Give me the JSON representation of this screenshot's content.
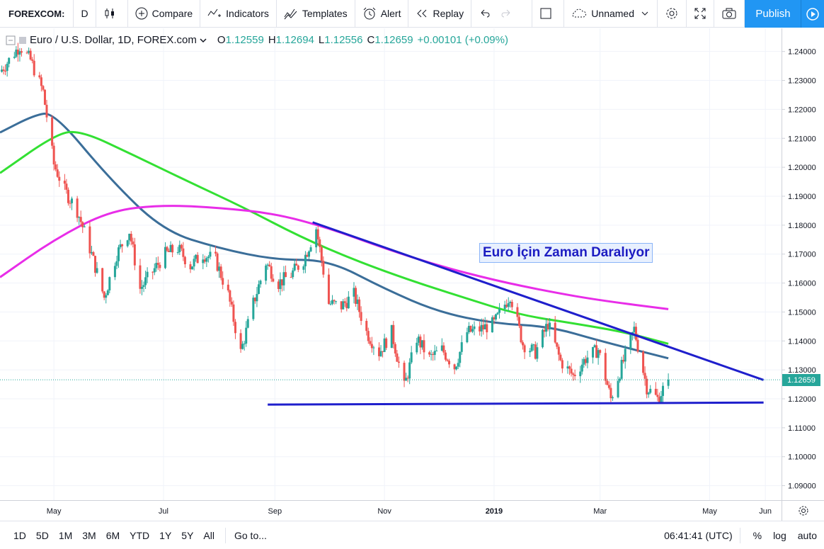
{
  "toolbar": {
    "symbol": "FOREXCOM:",
    "interval": "D",
    "compare": "Compare",
    "indicators": "Indicators",
    "templates": "Templates",
    "alert": "Alert",
    "replay": "Replay",
    "layout_name": "Unnamed",
    "publish": "Publish"
  },
  "legend": {
    "title": "Euro / U.S. Dollar, 1D, FOREX.com",
    "o_label": "O",
    "o_value": "1.12559",
    "h_label": "H",
    "h_value": "1.12694",
    "l_label": "L",
    "l_value": "1.12556",
    "c_label": "C",
    "c_value": "1.12659",
    "change": "+0.00101 (+0.09%)"
  },
  "annotation": "Euro İçin Zaman Daralıyor",
  "last_price": "1.12659",
  "bottombar": {
    "ranges": [
      "1D",
      "5D",
      "1M",
      "3M",
      "6M",
      "YTD",
      "1Y",
      "5Y",
      "All"
    ],
    "goto": "Go to...",
    "time": "06:41:41 (UTC)",
    "percent": "%",
    "log": "log",
    "auto": "auto"
  },
  "colors": {
    "up": "#26a69a",
    "down": "#ef5350",
    "ma_short": "#3b6e99",
    "ma_medium": "#33e033",
    "ma_long": "#e82de8",
    "trendline": "#1f1fcc",
    "accent": "#2196f3"
  },
  "chart_data": {
    "type": "candlestick",
    "symbol": "EURUSD",
    "interval": "1D",
    "ylim": [
      1.085,
      1.248
    ],
    "y_ticks": [
      "1.24000",
      "1.23000",
      "1.22000",
      "1.21000",
      "1.20000",
      "1.19000",
      "1.18000",
      "1.17000",
      "1.16000",
      "1.15000",
      "1.14000",
      "1.13000",
      "1.12000",
      "1.11000",
      "1.10000",
      "1.09000"
    ],
    "x_range": [
      "2018-04-01",
      "2019-06-10"
    ],
    "x_ticks": [
      {
        "date": "2018-05-01",
        "label": "May"
      },
      {
        "date": "2018-07-01",
        "label": "Jul"
      },
      {
        "date": "2018-09-01",
        "label": "Sep"
      },
      {
        "date": "2018-11-01",
        "label": "Nov"
      },
      {
        "date": "2019-01-01",
        "label": "2019"
      },
      {
        "date": "2019-03-01",
        "label": "Mar"
      },
      {
        "date": "2019-05-01",
        "label": "May"
      },
      {
        "date": "2019-06-01",
        "label": "Jun"
      }
    ],
    "price_path": [
      [
        "2018-04-01",
        1.233
      ],
      [
        "2018-04-06",
        1.237
      ],
      [
        "2018-04-12",
        1.242
      ],
      [
        "2018-04-18",
        1.237
      ],
      [
        "2018-04-25",
        1.226
      ],
      [
        "2018-05-01",
        1.201
      ],
      [
        "2018-05-07",
        1.192
      ],
      [
        "2018-05-14",
        1.185
      ],
      [
        "2018-05-21",
        1.172
      ],
      [
        "2018-05-29",
        1.155
      ],
      [
        "2018-06-05",
        1.17
      ],
      [
        "2018-06-12",
        1.178
      ],
      [
        "2018-06-18",
        1.158
      ],
      [
        "2018-06-25",
        1.164
      ],
      [
        "2018-07-02",
        1.17
      ],
      [
        "2018-07-09",
        1.172
      ],
      [
        "2018-07-16",
        1.166
      ],
      [
        "2018-07-23",
        1.17
      ],
      [
        "2018-07-30",
        1.168
      ],
      [
        "2018-08-06",
        1.156
      ],
      [
        "2018-08-13",
        1.136
      ],
      [
        "2018-08-20",
        1.153
      ],
      [
        "2018-08-27",
        1.167
      ],
      [
        "2018-09-03",
        1.16
      ],
      [
        "2018-09-10",
        1.163
      ],
      [
        "2018-09-17",
        1.168
      ],
      [
        "2018-09-24",
        1.179
      ],
      [
        "2018-10-01",
        1.153
      ],
      [
        "2018-10-08",
        1.152
      ],
      [
        "2018-10-15",
        1.156
      ],
      [
        "2018-10-22",
        1.143
      ],
      [
        "2018-10-29",
        1.136
      ],
      [
        "2018-11-05",
        1.143
      ],
      [
        "2018-11-12",
        1.124
      ],
      [
        "2018-11-19",
        1.141
      ],
      [
        "2018-11-26",
        1.134
      ],
      [
        "2018-12-03",
        1.137
      ],
      [
        "2018-12-10",
        1.131
      ],
      [
        "2018-12-17",
        1.143
      ],
      [
        "2018-12-24",
        1.144
      ],
      [
        "2019-01-01",
        1.146
      ],
      [
        "2019-01-10",
        1.156
      ],
      [
        "2019-01-17",
        1.139
      ],
      [
        "2019-01-24",
        1.136
      ],
      [
        "2019-01-31",
        1.146
      ],
      [
        "2019-02-07",
        1.133
      ],
      [
        "2019-02-14",
        1.128
      ],
      [
        "2019-02-21",
        1.134
      ],
      [
        "2019-02-28",
        1.137
      ],
      [
        "2019-03-07",
        1.12
      ],
      [
        "2019-03-14",
        1.133
      ],
      [
        "2019-03-20",
        1.144
      ],
      [
        "2019-03-27",
        1.124
      ],
      [
        "2019-04-02",
        1.12
      ],
      [
        "2019-04-08",
        1.1266
      ]
    ],
    "moving_averages": [
      {
        "points": [
          [
            "2018-04-01",
            1.212
          ],
          [
            "2018-04-20",
            1.218
          ],
          [
            "2018-05-01",
            1.219
          ],
          [
            "2018-06-01",
            1.196
          ],
          [
            "2018-07-01",
            1.178
          ],
          [
            "2018-08-01",
            1.172
          ],
          [
            "2018-09-01",
            1.168
          ],
          [
            "2018-10-01",
            1.168
          ],
          [
            "2018-11-01",
            1.158
          ],
          [
            "2018-12-01",
            1.15
          ],
          [
            "2019-01-01",
            1.146
          ],
          [
            "2019-02-01",
            1.145
          ],
          [
            "2019-03-01",
            1.14
          ],
          [
            "2019-04-08",
            1.134
          ]
        ]
      },
      {
        "points": [
          [
            "2018-04-01",
            1.198
          ],
          [
            "2018-05-01",
            1.211
          ],
          [
            "2018-05-15",
            1.213
          ],
          [
            "2018-06-15",
            1.204
          ],
          [
            "2018-07-15",
            1.195
          ],
          [
            "2018-08-15",
            1.186
          ],
          [
            "2018-09-15",
            1.176
          ],
          [
            "2018-10-15",
            1.168
          ],
          [
            "2018-11-15",
            1.161
          ],
          [
            "2018-12-15",
            1.155
          ],
          [
            "2019-01-15",
            1.149
          ],
          [
            "2019-02-15",
            1.146
          ],
          [
            "2019-03-15",
            1.143
          ],
          [
            "2019-04-08",
            1.139
          ]
        ]
      },
      {
        "points": [
          [
            "2018-04-01",
            1.162
          ],
          [
            "2018-05-01",
            1.175
          ],
          [
            "2018-06-01",
            1.185
          ],
          [
            "2018-07-01",
            1.187
          ],
          [
            "2018-08-01",
            1.186
          ],
          [
            "2018-09-01",
            1.184
          ],
          [
            "2018-10-01",
            1.179
          ],
          [
            "2018-11-01",
            1.172
          ],
          [
            "2018-12-01",
            1.166
          ],
          [
            "2019-01-01",
            1.161
          ],
          [
            "2019-02-01",
            1.157
          ],
          [
            "2019-03-01",
            1.154
          ],
          [
            "2019-04-08",
            1.151
          ]
        ]
      }
    ],
    "trendlines": [
      {
        "from": [
          "2018-09-22",
          1.181
        ],
        "to": [
          "2019-05-31",
          1.1265
        ]
      },
      {
        "from": [
          "2018-08-28",
          1.118
        ],
        "to": [
          "2019-05-31",
          1.1187
        ]
      }
    ],
    "last_price": 1.12659
  }
}
